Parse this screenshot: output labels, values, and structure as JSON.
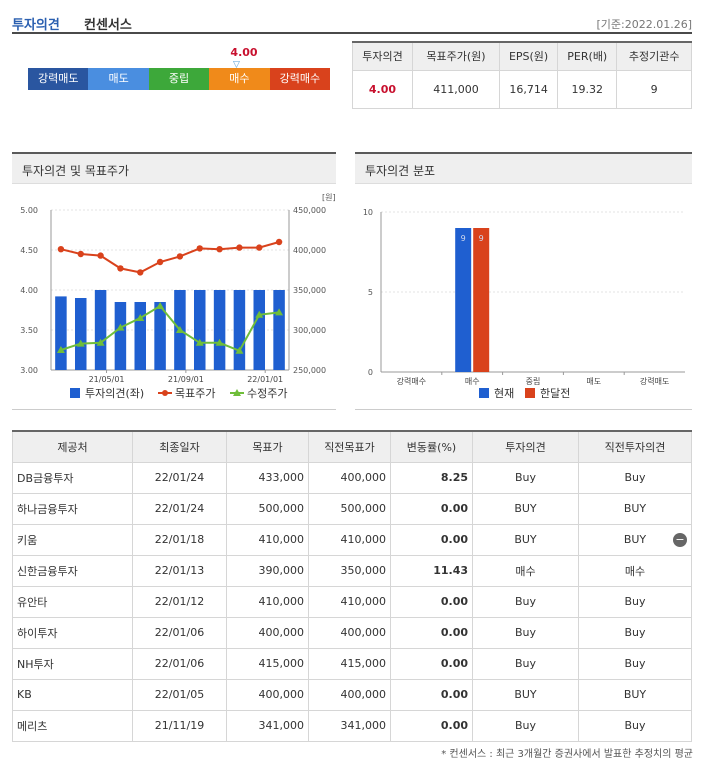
{
  "header": {
    "title1": "투자의견",
    "title2": "컨센서스",
    "date": "[기준:2022.01.26]"
  },
  "scale": {
    "labels": [
      "강력매도",
      "매도",
      "중립",
      "매수",
      "강력매수"
    ],
    "colors": [
      "#2a56a0",
      "#4a8ee0",
      "#3da83a",
      "#f08a1a",
      "#d9421c"
    ],
    "value": "4.00"
  },
  "summary": {
    "headers": [
      "투자의견",
      "목표주가(원)",
      "EPS(원)",
      "PER(배)",
      "추정기관수"
    ],
    "values": [
      "4.00",
      "411,000",
      "16,714",
      "19.32",
      "9"
    ]
  },
  "panels": {
    "left_title": "투자의견 및 목표주가",
    "right_title": "투자의견 분포"
  },
  "chart_data": [
    {
      "type": "bar+line",
      "title": "투자의견 및 목표주가",
      "x_tick_labels": [
        "21/05/01",
        "21/09/01",
        "22/01/01"
      ],
      "y_left": {
        "ticks": [
          "5.00",
          "4.50",
          "4.00",
          "3.50",
          "3.00"
        ],
        "range": [
          3.0,
          5.0
        ]
      },
      "y_right": {
        "unit": "[원]",
        "ticks": [
          "450,000",
          "400,000",
          "350,000",
          "300,000",
          "250,000"
        ],
        "range": [
          250000,
          450000
        ]
      },
      "series": [
        {
          "name": "투자의견(좌)",
          "kind": "bar",
          "color": "#1f5fd0",
          "values": [
            3.92,
            3.9,
            4.0,
            3.85,
            3.85,
            3.85,
            4.0,
            4.0,
            4.0,
            4.0,
            4.0,
            4.0
          ]
        },
        {
          "name": "목표주가",
          "kind": "line",
          "color": "#d9421c",
          "values": [
            401000,
            395000,
            393000,
            377000,
            372000,
            385000,
            392000,
            402000,
            401000,
            403000,
            403000,
            410000
          ]
        },
        {
          "name": "수정주가",
          "kind": "line",
          "color": "#6fbe3a",
          "values": [
            275000,
            283000,
            284000,
            303000,
            315000,
            330000,
            300000,
            284000,
            284000,
            274000,
            319000,
            322000
          ]
        }
      ]
    },
    {
      "type": "bar",
      "title": "투자의견 분포",
      "categories": [
        "강력매수",
        "매수",
        "중립",
        "매도",
        "강력매도"
      ],
      "ylim": [
        0,
        10
      ],
      "y_ticks": [
        "10",
        "5",
        "0"
      ],
      "series": [
        {
          "name": "현재",
          "color": "#1f5fd0",
          "values": [
            0,
            9,
            0,
            0,
            0
          ]
        },
        {
          "name": "한달전",
          "color": "#d9421c",
          "values": [
            0,
            9,
            0,
            0,
            0
          ]
        }
      ],
      "bar_labels": [
        "9",
        "9"
      ]
    }
  ],
  "table": {
    "headers": [
      "제공처",
      "최종일자",
      "목표가",
      "직전목표가",
      "변동률(%)",
      "투자의견",
      "직전투자의견"
    ],
    "rows": [
      [
        "DB금융투자",
        "22/01/24",
        "433,000",
        "400,000",
        "8.25",
        "Buy",
        "Buy"
      ],
      [
        "하나금융투자",
        "22/01/24",
        "500,000",
        "500,000",
        "0.00",
        "BUY",
        "BUY"
      ],
      [
        "키움",
        "22/01/18",
        "410,000",
        "410,000",
        "0.00",
        "BUY",
        "BUY"
      ],
      [
        "신한금융투자",
        "22/01/13",
        "390,000",
        "350,000",
        "11.43",
        "매수",
        "매수"
      ],
      [
        "유안타",
        "22/01/12",
        "410,000",
        "410,000",
        "0.00",
        "Buy",
        "Buy"
      ],
      [
        "하이투자",
        "22/01/06",
        "400,000",
        "400,000",
        "0.00",
        "Buy",
        "Buy"
      ],
      [
        "NH투자",
        "22/01/06",
        "415,000",
        "415,000",
        "0.00",
        "Buy",
        "Buy"
      ],
      [
        "KB",
        "22/01/05",
        "400,000",
        "400,000",
        "0.00",
        "BUY",
        "BUY"
      ],
      [
        "메리츠",
        "21/11/19",
        "341,000",
        "341,000",
        "0.00",
        "Buy",
        "Buy"
      ]
    ]
  },
  "footnote": "* 컨센서스 : 최근 3개월간 증권사에서 발표한 추정치의 평균"
}
